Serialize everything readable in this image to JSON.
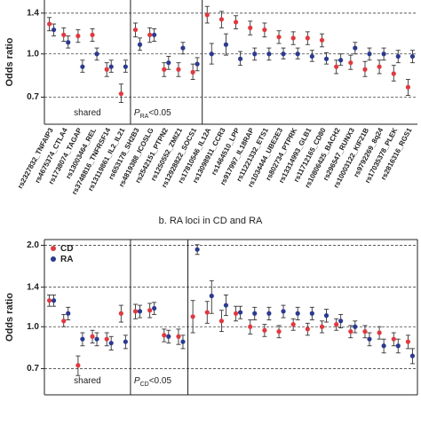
{
  "chart_data": [
    {
      "type": "errorbar",
      "y_label": "Odds ratio",
      "log_y": true,
      "grid": true,
      "legend": false,
      "categories": [
        "rs2327832_TNFAIP3",
        "rs4675374_CTLA4",
        "rs1738074_TAGAP",
        "rs13003464_REL",
        "rs3748816_TNFRSF14",
        "rs13119861_IL2_IL21",
        "rs653178_SH2B3",
        "rs4819388_ICOSLG",
        "rs2542151_PTPN2",
        "rs1250552_ZMIZ1",
        "rs12928822_SOCS1",
        "rs17810546_IL12A",
        "rs13098911_CCR3",
        "rs1464510_LPP",
        "rs917997_IL18RAP",
        "rs11221332_ETS1",
        "rs1034444_UBE2E3",
        "rs802734_PTPRK",
        "rs13314993_GLB1",
        "rs11712165_CD80",
        "rs10806425_BACH2",
        "rs296547_RUNX3",
        "rs10003122_KIF21B",
        "rs9792269_8q24",
        "rs17035378_PLEK",
        "rs2816316_RGS1"
      ],
      "ylim": [
        0.56,
        1.56
      ],
      "yticks": [
        0.7,
        {
          "value": 1.0,
          "label": "1.0"
        },
        1.4
      ],
      "annotations": [
        {
          "text": "shared"
        },
        {
          "text": "P",
          "sub": "RA",
          "suffix": "<0.05"
        }
      ],
      "series": [
        {
          "color": "#e0393e",
          "values": [
            1.28,
            1.17,
            1.16,
            1.17,
            0.88,
            0.72,
            1.22,
            1.17,
            0.88,
            0.88,
            0.86,
            1.38,
            1.33,
            1.3,
            1.24,
            1.22,
            1.15,
            1.14,
            1.14,
            1.12,
            0.9,
            0.93,
            0.88,
            0.9,
            0.85,
            0.76
          ],
          "lower": [
            1.21,
            1.11,
            1.1,
            1.11,
            0.83,
            0.67,
            1.15,
            1.1,
            0.83,
            0.83,
            0.81,
            1.29,
            1.24,
            1.23,
            1.17,
            1.15,
            1.09,
            1.08,
            1.08,
            1.06,
            0.85,
            0.88,
            0.83,
            0.85,
            0.8,
            0.71
          ],
          "upper": [
            1.35,
            1.24,
            1.22,
            1.23,
            0.93,
            0.78,
            1.29,
            1.24,
            0.93,
            0.93,
            0.92,
            1.48,
            1.42,
            1.37,
            1.31,
            1.29,
            1.21,
            1.2,
            1.2,
            1.18,
            0.95,
            0.99,
            0.94,
            0.95,
            0.91,
            0.81
          ]
        },
        {
          "color": "#2b3a8f",
          "values": [
            1.22,
            1.1,
            0.9,
            1.0,
            0.9,
            0.9,
            1.08,
            1.17,
            0.93,
            1.05,
            0.92,
            1.0,
            1.08,
            0.96,
            1.0,
            1.0,
            1.0,
            1.0,
            0.98,
            0.96,
            0.95,
            1.05,
            1.0,
            1.0,
            0.98,
            0.98
          ],
          "lower": [
            1.16,
            1.05,
            0.86,
            0.95,
            0.86,
            0.86,
            1.03,
            1.11,
            0.88,
            1.0,
            0.87,
            0.92,
            0.99,
            0.91,
            0.95,
            0.95,
            0.96,
            0.96,
            0.94,
            0.92,
            0.91,
            1.0,
            0.95,
            0.95,
            0.93,
            0.93
          ],
          "upper": [
            1.28,
            1.16,
            0.95,
            1.05,
            0.95,
            0.95,
            1.14,
            1.23,
            0.98,
            1.1,
            0.97,
            1.09,
            1.18,
            1.02,
            1.05,
            1.05,
            1.05,
            1.05,
            1.03,
            1.01,
            1.0,
            1.1,
            1.05,
            1.05,
            1.03,
            1.03
          ]
        }
      ]
    },
    {
      "type": "errorbar",
      "title": "b. RA loci in CD and RA",
      "y_label": "Odds ratio",
      "log_y": true,
      "grid": true,
      "legend": "upper left",
      "categories": [
        null,
        null,
        null,
        null,
        null,
        null,
        null,
        null,
        null,
        null,
        null,
        null,
        null,
        null,
        null,
        null,
        null,
        null,
        null,
        null,
        null,
        null,
        null,
        null,
        null,
        null
      ],
      "ylim": [
        0.56,
        2.1
      ],
      "yticks": [
        0.7,
        {
          "value": 1.0,
          "label": "1.0"
        },
        1.4,
        {
          "value": 2.0,
          "label": "2.0"
        }
      ],
      "annotations": [
        {
          "text": "shared"
        },
        {
          "text": "P",
          "sub": "CD",
          "suffix": "<0.05"
        }
      ],
      "series": [
        {
          "name": "CD",
          "color": "#e0393e",
          "values": [
            1.25,
            1.05,
            0.72,
            0.92,
            0.9,
            1.12,
            1.14,
            1.15,
            0.93,
            0.92,
            1.09,
            1.13,
            1.05,
            1.12,
            1.0,
            0.97,
            0.96,
            1.02,
            0.98,
            1.0,
            1.02,
            0.96,
            0.96,
            0.95,
            0.9,
            0.88
          ],
          "lower": [
            1.19,
            1.0,
            0.66,
            0.87,
            0.85,
            1.04,
            1.07,
            1.08,
            0.88,
            0.86,
            0.95,
            1.03,
            0.96,
            1.05,
            0.94,
            0.92,
            0.91,
            0.97,
            0.93,
            0.95,
            0.97,
            0.91,
            0.91,
            0.9,
            0.85,
            0.83
          ],
          "upper": [
            1.31,
            1.11,
            0.78,
            0.97,
            0.95,
            1.2,
            1.21,
            1.22,
            0.98,
            0.98,
            1.25,
            1.24,
            1.15,
            1.19,
            1.06,
            1.02,
            1.01,
            1.07,
            1.03,
            1.05,
            1.07,
            1.01,
            1.01,
            1.0,
            0.95,
            0.93
          ]
        },
        {
          "name": "RA",
          "color": "#2b3a8f",
          "values": [
            1.25,
            1.12,
            0.9,
            0.9,
            0.87,
            0.88,
            1.14,
            1.17,
            0.92,
            0.88,
            1.93,
            1.3,
            1.2,
            1.13,
            1.12,
            1.12,
            1.14,
            1.12,
            1.12,
            1.1,
            1.05,
            1.0,
            0.9,
            0.85,
            0.85,
            0.78
          ],
          "lower": [
            1.19,
            1.06,
            0.85,
            0.85,
            0.82,
            0.83,
            1.08,
            1.11,
            0.87,
            0.83,
            1.85,
            1.12,
            1.1,
            1.07,
            1.06,
            1.06,
            1.08,
            1.06,
            1.06,
            1.04,
            0.99,
            0.95,
            0.85,
            0.8,
            0.8,
            0.73
          ],
          "upper": [
            1.31,
            1.18,
            0.95,
            0.95,
            0.92,
            0.93,
            1.2,
            1.23,
            0.97,
            0.93,
            2.01,
            1.48,
            1.31,
            1.19,
            1.18,
            1.18,
            1.2,
            1.18,
            1.18,
            1.16,
            1.11,
            1.05,
            0.95,
            0.9,
            0.9,
            0.83
          ]
        }
      ]
    }
  ]
}
